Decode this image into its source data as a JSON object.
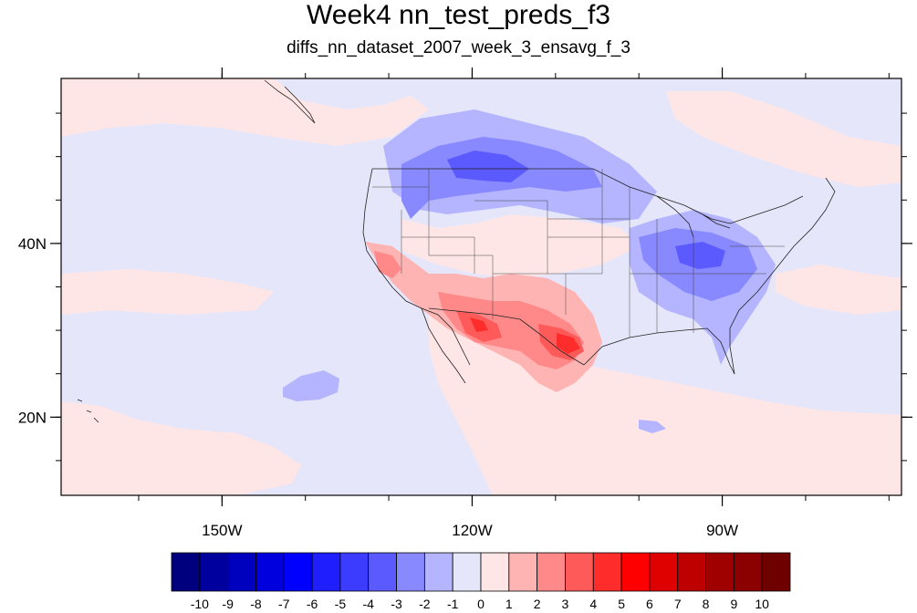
{
  "title": "Week4 nn_test_preds_f3",
  "subtitle": "diffs_nn_dataset_2007_week_3_ensavg_f_3",
  "map": {
    "lon_range": [
      -169.3,
      -68.5
    ],
    "lat_range": [
      11.0,
      59.0
    ],
    "x_ticks": [
      {
        "lon": -150,
        "label": "150W"
      },
      {
        "lon": -120,
        "label": "120W"
      },
      {
        "lon": -90,
        "label": "90W"
      }
    ],
    "y_ticks": [
      {
        "lat": 40,
        "label": "40N"
      },
      {
        "lat": 20,
        "label": "20N"
      }
    ],
    "background_value_color": "#e6e6fa"
  },
  "colorbar": {
    "colors": [
      "#00007f",
      "#00009f",
      "#0000bf",
      "#0000df",
      "#0000ff",
      "#1e1eff",
      "#3c3cff",
      "#5a5aff",
      "#8888ff",
      "#b4b4ff",
      "#e6e6fa",
      "#ffe6e6",
      "#ffb4b4",
      "#ff8888",
      "#ff5a5a",
      "#ff2c2c",
      "#ff0000",
      "#df0000",
      "#bf0000",
      "#9f0000",
      "#8b0000",
      "#6f0000"
    ],
    "labels": [
      "-10",
      "-9",
      "-8",
      "-7",
      "-6",
      "-5",
      "-4",
      "-3",
      "-2",
      "-1",
      "0",
      "1",
      "2",
      "3",
      "4",
      "5",
      "6",
      "7",
      "8",
      "9",
      "10"
    ]
  }
}
